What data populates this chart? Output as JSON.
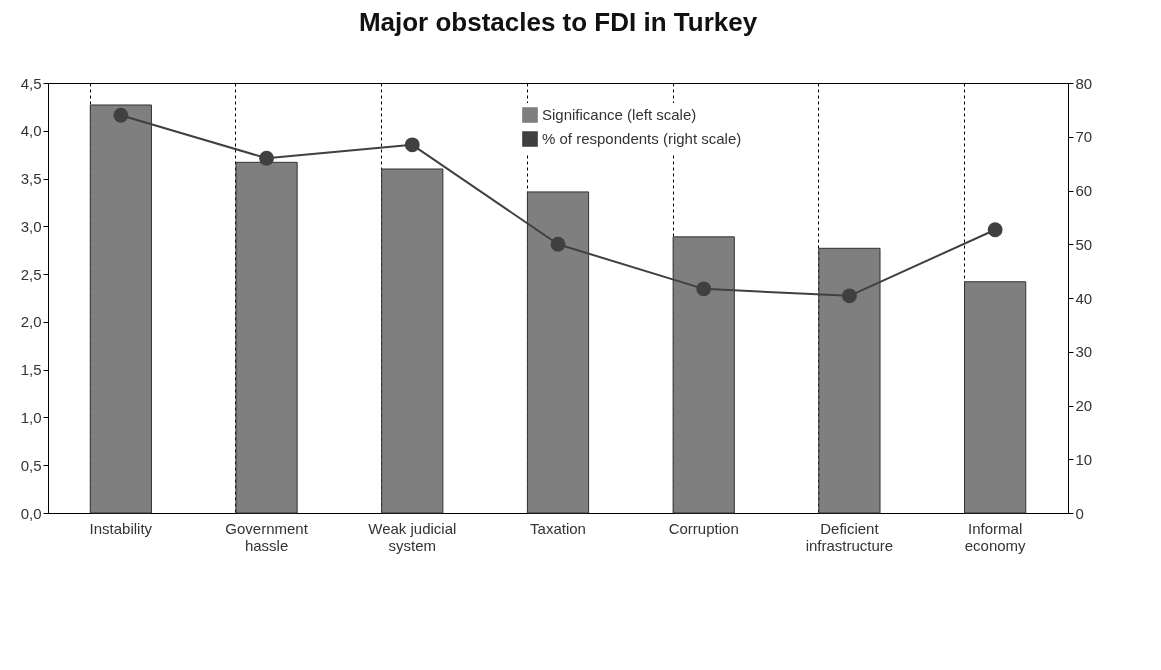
{
  "chart_data": {
    "type": "bar",
    "title": "Major obstacles to FDI in Turkey",
    "categories": [
      "Instability",
      "Government hassle",
      "Weak judicial system",
      "Taxation",
      "Corruption",
      "Deficient infrastructure",
      "Informal economy"
    ],
    "series": [
      {
        "name": "Significance (left scale)",
        "color": "#7f7f7f",
        "values": [
          4.27,
          3.67,
          3.6,
          3.36,
          2.89,
          2.77,
          2.42
        ]
      },
      {
        "name": "% of respondents (right scale)",
        "type": "line",
        "axis": "y2",
        "color": "#404040",
        "values": [
          74,
          66,
          68.5,
          50,
          41.7,
          40.4,
          52.7
        ]
      }
    ],
    "ylim": [
      0,
      4.5
    ],
    "yticks": [
      {
        "value": 0,
        "label": "0,0"
      },
      {
        "value": 0.5,
        "label": "0,5"
      },
      {
        "value": 1,
        "label": "1,0"
      },
      {
        "value": 1.5,
        "label": "1,5"
      },
      {
        "value": 2,
        "label": "2,0"
      },
      {
        "value": 2.5,
        "label": "2,5"
      },
      {
        "value": 3,
        "label": "3,0"
      },
      {
        "value": 3.5,
        "label": "3,5"
      },
      {
        "value": 4,
        "label": "4,0"
      },
      {
        "value": 4.5,
        "label": "4,5"
      }
    ],
    "y2lim": [
      0,
      80
    ],
    "y2ticks": [
      0,
      10,
      20,
      30,
      40,
      50,
      60,
      70,
      80
    ],
    "grid": "x",
    "legend": "top right",
    "marker": "circle",
    "line_style": "solid"
  }
}
